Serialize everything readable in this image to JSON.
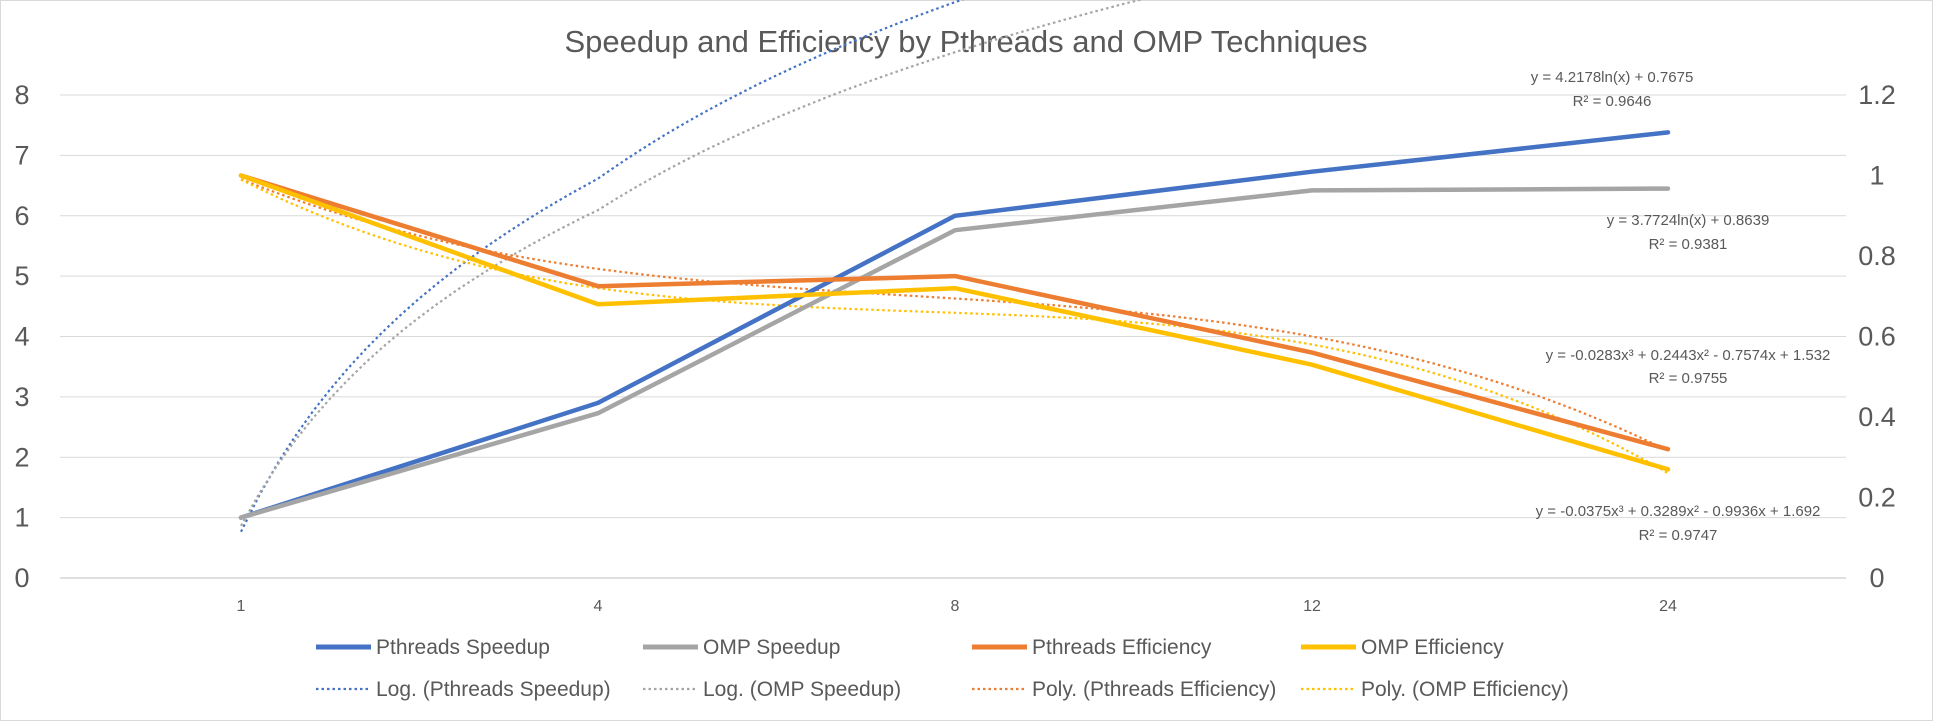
{
  "chart_data": {
    "type": "line",
    "title": "Speedup and Efficiency by Pthreads and OMP Techniques",
    "categories": [
      "1",
      "4",
      "8",
      "12",
      "24"
    ],
    "y_left": {
      "ticks": [
        "0",
        "1",
        "2",
        "3",
        "4",
        "5",
        "6",
        "7",
        "8"
      ],
      "min": 0,
      "max": 8
    },
    "y_right": {
      "ticks": [
        "0",
        "0.2",
        "0.4",
        "0.6",
        "0.8",
        "1",
        "1.2"
      ],
      "min": 0,
      "max": 1.2
    },
    "grid": true,
    "legend_position": "bottom",
    "series": [
      {
        "name": "Pthreads Speedup",
        "axis": "left",
        "color": "#4472C4",
        "values": [
          1.0,
          2.9,
          6.0,
          6.73,
          7.38
        ]
      },
      {
        "name": "OMP Speedup",
        "axis": "left",
        "color": "#A5A5A5",
        "values": [
          1.0,
          2.73,
          5.76,
          6.42,
          6.45
        ]
      },
      {
        "name": "Pthreads Efficiency",
        "axis": "right",
        "color": "#ED7D31",
        "values": [
          1.0,
          0.725,
          0.75,
          0.56,
          0.32
        ]
      },
      {
        "name": "OMP Efficiency",
        "axis": "right",
        "color": "#FFC000",
        "values": [
          1.0,
          0.68,
          0.72,
          0.53,
          0.27
        ]
      }
    ],
    "trendlines": [
      {
        "name": "Log. (Pthreads Speedup)",
        "of": "Pthreads Speedup",
        "kind": "log",
        "axis": "left",
        "color": "#4472C4",
        "coef": [
          4.2178,
          0.7675
        ],
        "equation": "y = 4.2178ln(x) + 0.7675",
        "r2": "R² = 0.9646"
      },
      {
        "name": "Log. (OMP Speedup)",
        "of": "OMP Speedup",
        "kind": "log",
        "axis": "left",
        "color": "#A5A5A5",
        "coef": [
          3.7724,
          0.8639
        ],
        "equation": "y = 3.7724ln(x) + 0.8639",
        "r2": "R² = 0.9381"
      },
      {
        "name": "Poly. (Pthreads Efficiency)",
        "of": "Pthreads Efficiency",
        "kind": "poly3",
        "axis": "right",
        "color": "#ED7D31",
        "coef": [
          -0.0283,
          0.2443,
          -0.7574,
          1.532
        ],
        "equation": "y = -0.0283x³ + 0.2443x² - 0.7574x + 1.532",
        "r2": "R² = 0.9755"
      },
      {
        "name": "Poly. (OMP Efficiency)",
        "of": "OMP Efficiency",
        "kind": "poly3",
        "axis": "right",
        "color": "#FFC000",
        "coef": [
          -0.0375,
          0.3289,
          -0.9936,
          1.692
        ],
        "equation": "y = -0.0375x³ + 0.3289x² - 0.9936x + 1.692",
        "r2": "R² = 0.9747"
      }
    ]
  }
}
